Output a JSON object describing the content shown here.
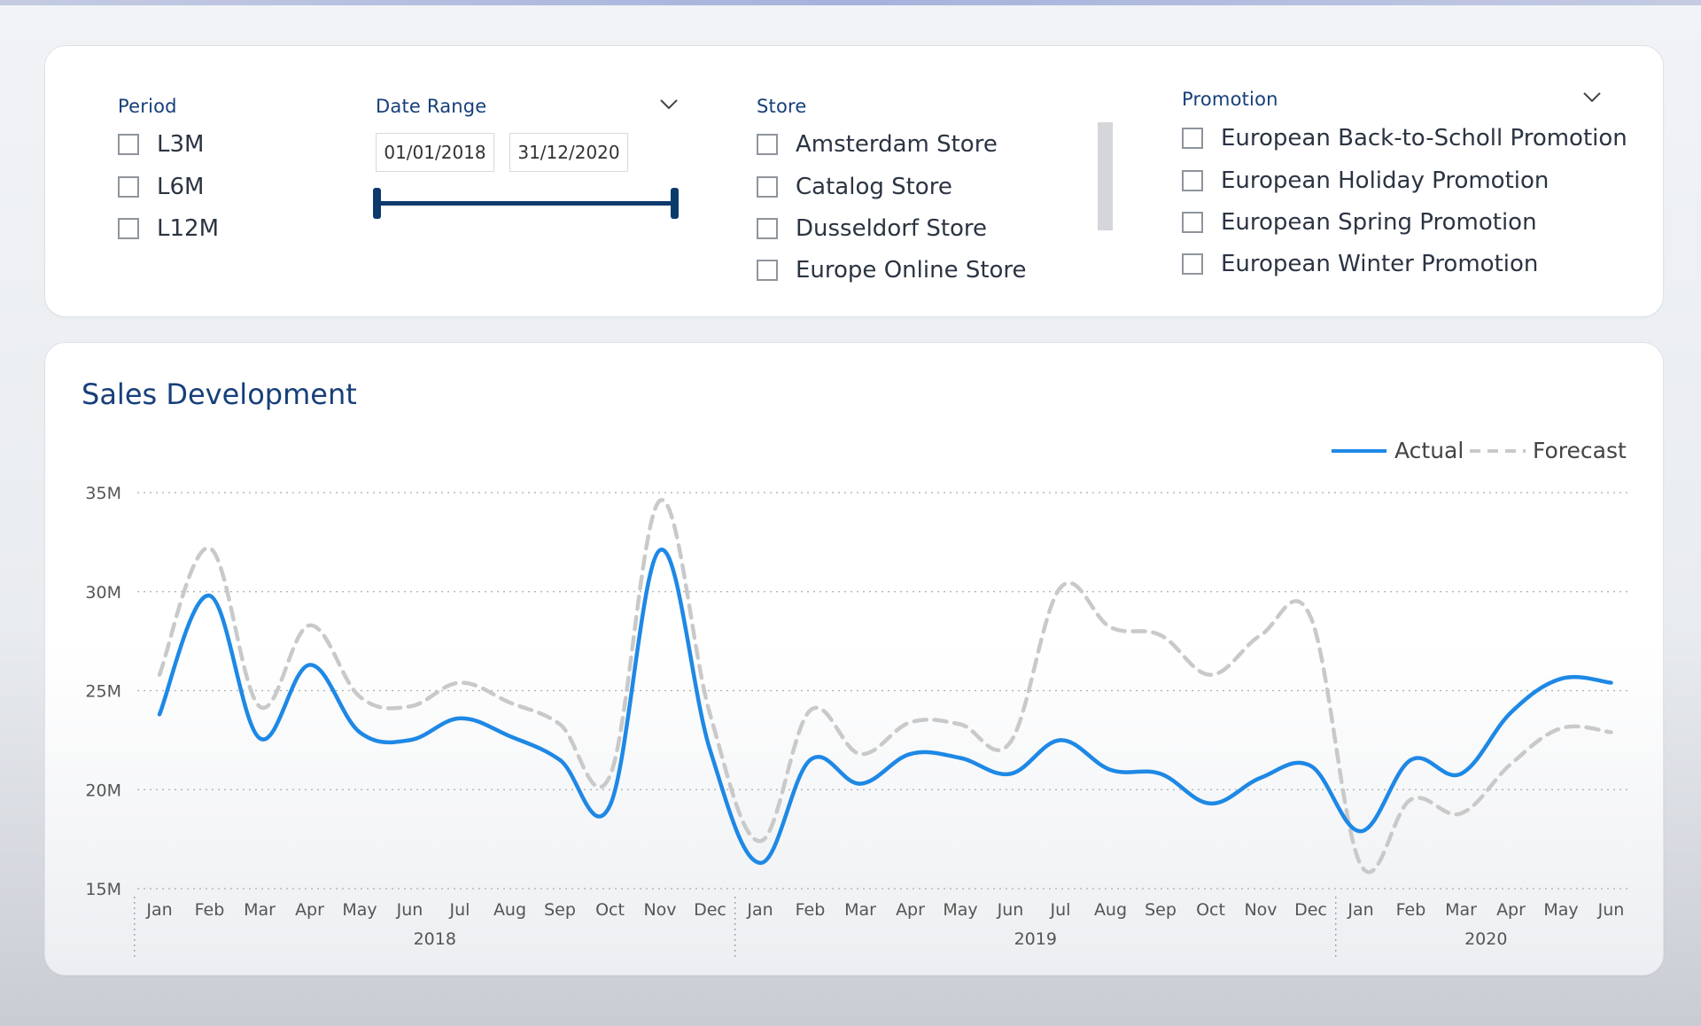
{
  "filters": {
    "period": {
      "title": "Period",
      "options": [
        "L3M",
        "L6M",
        "L12M"
      ]
    },
    "date_range": {
      "title": "Date Range",
      "start": "01/01/2018",
      "end": "31/12/2020"
    },
    "store": {
      "title": "Store",
      "options": [
        "Amsterdam Store",
        "Catalog Store",
        "Dusseldorf Store",
        "Europe Online Store"
      ]
    },
    "promotion": {
      "title": "Promotion",
      "options": [
        "European Back-to-Scholl Promotion",
        "European Holiday Promotion",
        "European Spring Promotion",
        "European Winter Promotion"
      ]
    }
  },
  "icons": {
    "dropdown": "chevron-down-icon",
    "checkbox": "checkbox-icon"
  },
  "colors": {
    "accent": "#173f7a",
    "actual": "#1e88e5",
    "forecast": "#c9c9c9",
    "slider": "#0c3a6d"
  },
  "chart_title": "Sales Development",
  "chart_data": {
    "type": "line",
    "title": "Sales Development",
    "xlabel": "",
    "ylabel": "",
    "ylim": [
      15,
      35
    ],
    "y_ticks": [
      15,
      20,
      25,
      30,
      35
    ],
    "y_tick_labels": [
      "15M",
      "20M",
      "25M",
      "30M",
      "35M"
    ],
    "grid": true,
    "legend_position": "top-right",
    "categories": [
      "Jan",
      "Feb",
      "Mar",
      "Apr",
      "May",
      "Jun",
      "Jul",
      "Aug",
      "Sep",
      "Oct",
      "Nov",
      "Dec",
      "Jan",
      "Feb",
      "Mar",
      "Apr",
      "May",
      "Jun",
      "Jul",
      "Aug",
      "Sep",
      "Oct",
      "Nov",
      "Dec",
      "Jan",
      "Feb",
      "Mar",
      "Apr",
      "May",
      "Jun"
    ],
    "year_groups": [
      {
        "label": "2018",
        "count": 12
      },
      {
        "label": "2019",
        "count": 12
      },
      {
        "label": "2020",
        "count": 6
      }
    ],
    "series": [
      {
        "name": "Actual",
        "style": "solid",
        "values": [
          23.8,
          29.8,
          22.6,
          26.3,
          22.9,
          22.5,
          23.6,
          22.7,
          21.5,
          19.2,
          32.1,
          22.0,
          16.3,
          21.5,
          20.3,
          21.8,
          21.6,
          20.8,
          22.5,
          21.0,
          20.8,
          19.3,
          20.6,
          21.2,
          17.9,
          21.5,
          20.8,
          23.9,
          25.6,
          25.4
        ]
      },
      {
        "name": "Forecast",
        "style": "dashed",
        "values": [
          25.8,
          32.2,
          24.2,
          28.3,
          24.7,
          24.2,
          25.4,
          24.4,
          23.3,
          20.7,
          34.6,
          23.8,
          17.4,
          24.0,
          21.8,
          23.4,
          23.3,
          22.4,
          30.2,
          28.2,
          27.8,
          25.8,
          27.8,
          28.7,
          16.2,
          19.5,
          18.8,
          21.3,
          23.1,
          22.9
        ]
      }
    ]
  }
}
